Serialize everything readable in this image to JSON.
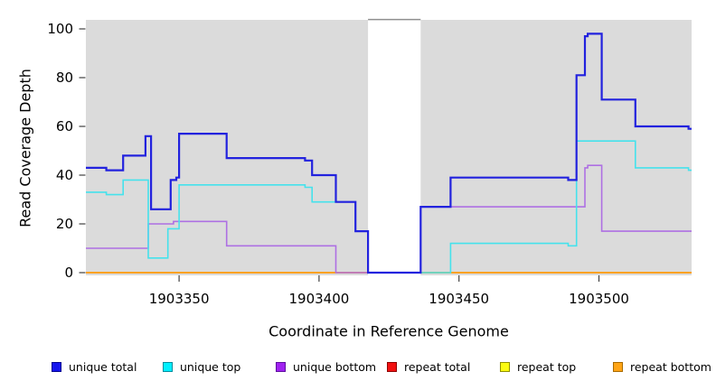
{
  "chart_data": {
    "type": "line",
    "subtype": "step-coverage-plot",
    "title": "",
    "xlabel": "Coordinate in Reference Genome",
    "ylabel": "Read Coverage Depth",
    "xlim": [
      1903316.7,
      1903533.1
    ],
    "ylim": [
      0,
      100
    ],
    "x_ticks": [
      1903350,
      1903400,
      1903450,
      1903500
    ],
    "y_ticks": [
      0,
      20,
      40,
      60,
      80,
      100
    ],
    "grid": false,
    "legend_position": "bottom",
    "plot_bg": "#DBDBDB",
    "tick_color": "#404040",
    "gap_region": {
      "x_start": 1903417.5,
      "x_end": 1903436.3,
      "fill": "#FFFFFF",
      "top_border_color": "#8F8F8F"
    },
    "series": [
      {
        "label": "unique total",
        "line_color": "#2222DE",
        "swatch_fill": "#1414EE",
        "swatch_border": "#000090",
        "line_width": 2.2,
        "z": 6,
        "steps": [
          [
            1903316.7,
            43
          ],
          [
            1903324,
            42
          ],
          [
            1903330,
            48
          ],
          [
            1903338,
            56
          ],
          [
            1903340,
            26
          ],
          [
            1903347,
            38
          ],
          [
            1903349,
            39
          ],
          [
            1903350,
            57
          ],
          [
            1903367,
            47
          ],
          [
            1903395,
            46
          ],
          [
            1903397.5,
            40
          ],
          [
            1903406,
            29
          ],
          [
            1903413,
            17
          ],
          [
            1903417.5,
            0
          ],
          [
            1903436.3,
            27
          ],
          [
            1903447,
            39
          ],
          [
            1903489,
            38
          ],
          [
            1903492,
            81
          ],
          [
            1903495,
            97
          ],
          [
            1903496,
            98
          ],
          [
            1903501,
            71
          ],
          [
            1903513,
            60
          ],
          [
            1903532,
            59
          ]
        ]
      },
      {
        "label": "unique top",
        "line_color": "#45E2EC",
        "swatch_fill": "#00F0FF",
        "swatch_border": "#008C9E",
        "line_width": 1.6,
        "z": 5,
        "steps": [
          [
            1903316.7,
            33
          ],
          [
            1903324,
            32
          ],
          [
            1903330,
            38
          ],
          [
            1903339,
            6
          ],
          [
            1903346,
            18
          ],
          [
            1903350,
            36
          ],
          [
            1903395,
            35
          ],
          [
            1903397.5,
            29
          ],
          [
            1903413,
            17
          ],
          [
            1903417.5,
            0
          ],
          [
            1903447,
            12
          ],
          [
            1903489,
            11
          ],
          [
            1903492,
            54
          ],
          [
            1903513,
            43
          ],
          [
            1903532,
            42
          ]
        ]
      },
      {
        "label": "unique bottom",
        "line_color": "#AE70E3",
        "swatch_fill": "#A022F0",
        "swatch_border": "#5E0DA0",
        "line_width": 1.6,
        "z": 4,
        "steps": [
          [
            1903316.7,
            10
          ],
          [
            1903339,
            20
          ],
          [
            1903348,
            21
          ],
          [
            1903367,
            11
          ],
          [
            1903406,
            0
          ],
          [
            1903436.3,
            27
          ],
          [
            1903495,
            43
          ],
          [
            1903496,
            44
          ],
          [
            1903501,
            17
          ]
        ]
      },
      {
        "label": "repeat total",
        "line_color": "#DD2222",
        "swatch_fill": "#F21111",
        "swatch_border": "#8E0000",
        "line_width": 1.6,
        "z": 1,
        "steps": [
          [
            1903316.7,
            0
          ]
        ]
      },
      {
        "label": "repeat top",
        "line_color": "#EDED2A",
        "swatch_fill": "#FCFC12",
        "swatch_border": "#909000",
        "line_width": 1.6,
        "z": 2,
        "steps": [
          [
            1903316.7,
            0
          ]
        ]
      },
      {
        "label": "repeat bottom",
        "line_color": "#FF9F1C",
        "swatch_fill": "#FFA517",
        "swatch_border": "#A86A00",
        "line_width": 1.8,
        "z": 3,
        "steps": [
          [
            1903316.7,
            0
          ]
        ]
      }
    ]
  }
}
